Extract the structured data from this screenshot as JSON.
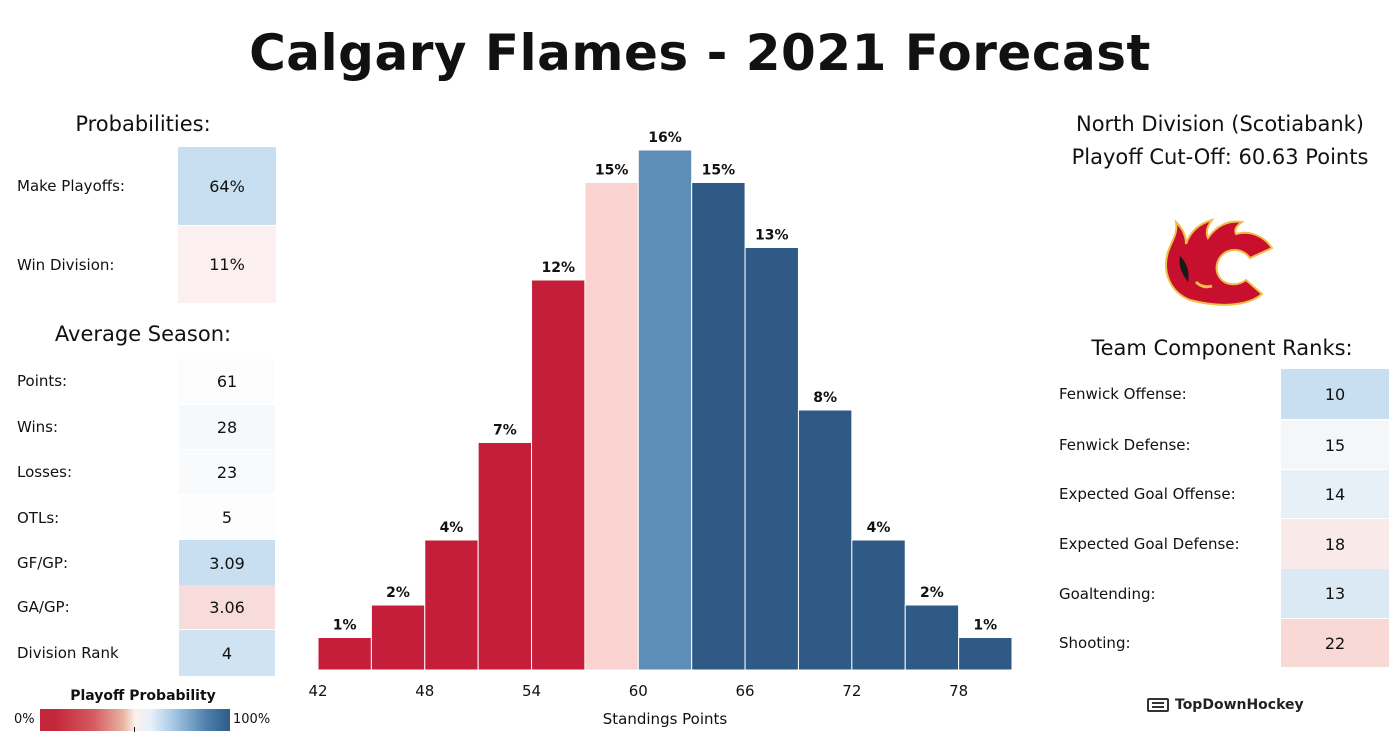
{
  "title": "Calgary Flames - 2021 Forecast",
  "probabilities": {
    "heading": "Probabilities:",
    "rows": [
      {
        "label": "Make Playoffs:",
        "value": "64%",
        "color": "#c7dff1"
      },
      {
        "label": "Win Division:",
        "value": "11%",
        "color": "#fbf0ef"
      }
    ]
  },
  "average_season": {
    "heading": "Average Season:",
    "rows": [
      {
        "label": "Points:",
        "value": "61",
        "color": "#fcfcfd"
      },
      {
        "label": "Wins:",
        "value": "28",
        "color": "#f5f9fb"
      },
      {
        "label": "Losses:",
        "value": "23",
        "color": "#f8fafc"
      },
      {
        "label": "OTLs:",
        "value": "5",
        "color": "#fdfdfe"
      },
      {
        "label": "GF/GP:",
        "value": "3.09",
        "color": "#c7dff1"
      },
      {
        "label": "GA/GP:",
        "value": "3.06",
        "color": "#f7dcdb"
      },
      {
        "label": "Division Rank",
        "value": "4",
        "color": "#cfe3f2"
      }
    ]
  },
  "division": {
    "line1": "North Division (Scotiabank)",
    "line2": "Playoff Cut-Off: 60.63 Points"
  },
  "logo_icon": "flames-logo-icon",
  "team_ranks": {
    "heading": "Team Component Ranks:",
    "rows": [
      {
        "label": "Fenwick Offense:",
        "value": "10",
        "color": "#c7dff1"
      },
      {
        "label": "Fenwick Defense:",
        "value": "15",
        "color": "#f3f7fa"
      },
      {
        "label": "Expected Goal Offense:",
        "value": "14",
        "color": "#e7f0f7"
      },
      {
        "label": "Expected Goal Defense:",
        "value": "18",
        "color": "#f9e9e8"
      },
      {
        "label": "Goaltending:",
        "value": "13",
        "color": "#dbe9f5"
      },
      {
        "label": "Shooting:",
        "value": "22",
        "color": "#f9d9d6"
      }
    ]
  },
  "legend": {
    "title": "Playoff Probability",
    "low": "0%",
    "high": "100%"
  },
  "brand": "TopDownHockey",
  "chart_data": {
    "type": "bar",
    "title": "",
    "xlabel": "Standings Points",
    "ylabel": "",
    "bin_starts": [
      42,
      45,
      48,
      51,
      54,
      57,
      60,
      63,
      66,
      69,
      72,
      75,
      78
    ],
    "bin_width": 3,
    "values": [
      1,
      2,
      4,
      7,
      12,
      15,
      16,
      15,
      13,
      8,
      4,
      2,
      1
    ],
    "labels": [
      "1%",
      "2%",
      "4%",
      "7%",
      "12%",
      "15%",
      "16%",
      "15%",
      "13%",
      "8%",
      "4%",
      "2%",
      "1%"
    ],
    "colors": [
      "#c41e3a",
      "#c41e3a",
      "#c41e3a",
      "#c41e3a",
      "#c41e3a",
      "#fad3d0",
      "#5e8db8",
      "#2f5a85",
      "#2f5a85",
      "#2f5a85",
      "#2f5a85",
      "#2f5a85",
      "#2f5a85"
    ],
    "xticks": [
      42,
      48,
      54,
      60,
      66,
      72,
      78
    ],
    "xlim": [
      42,
      81
    ],
    "ylim": [
      0,
      16
    ],
    "grid": false,
    "legend": "none"
  }
}
